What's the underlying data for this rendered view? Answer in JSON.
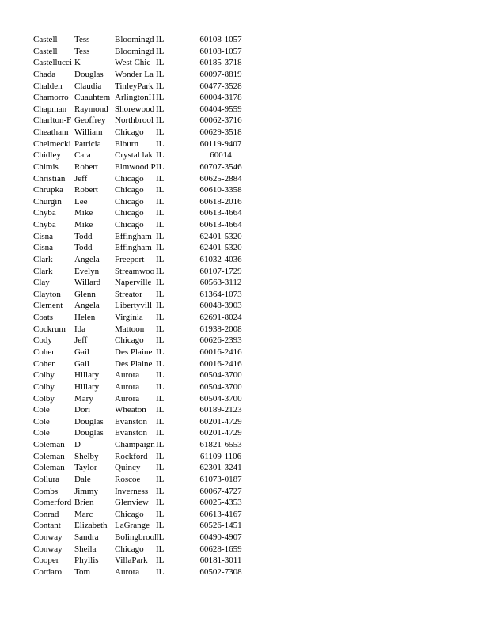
{
  "table": {
    "rows": [
      [
        "Castell",
        "Tess",
        "Bloomingd",
        "IL",
        "60108-1057"
      ],
      [
        "Castell",
        "Tess",
        "Bloomingd",
        "IL",
        "60108-1057"
      ],
      [
        "Castellucci",
        "K",
        "West Chic",
        "IL",
        "60185-3718"
      ],
      [
        "Chada",
        "Douglas",
        "Wonder La",
        "IL",
        "60097-8819"
      ],
      [
        "Chalden",
        "Claudia",
        "TinleyPark",
        "IL",
        "60477-3528"
      ],
      [
        "Chamorro",
        "Cuauhtem",
        "ArlingtonH",
        "IL",
        "60004-3178"
      ],
      [
        "Chapman",
        "Raymond",
        "Shorewood",
        "IL",
        "60404-9559"
      ],
      [
        "Charlton-F",
        "Geoffrey",
        "Northbrool",
        "IL",
        "60062-3716"
      ],
      [
        "Cheatham",
        "William",
        "Chicago",
        "IL",
        "60629-3518"
      ],
      [
        "Chelmecki",
        "Patricia",
        "Elburn",
        "IL",
        "60119-9407"
      ],
      [
        "Chidley",
        "Cara",
        "Crystal lak",
        "IL",
        "60014"
      ],
      [
        "Chimis",
        "Robert",
        "Elmwood P",
        "IL",
        "60707-3546"
      ],
      [
        "Christian",
        "Jeff",
        "Chicago",
        "IL",
        "60625-2884"
      ],
      [
        "Chrupka",
        "Robert",
        "Chicago",
        "IL",
        "60610-3358"
      ],
      [
        "Churgin",
        "Lee",
        "Chicago",
        "IL",
        "60618-2016"
      ],
      [
        "Chyba",
        "Mike",
        "Chicago",
        "IL",
        "60613-4664"
      ],
      [
        "Chyba",
        "Mike",
        "Chicago",
        "IL",
        "60613-4664"
      ],
      [
        "Cisna",
        "Todd",
        "Effingham",
        "IL",
        "62401-5320"
      ],
      [
        "Cisna",
        "Todd",
        "Effingham",
        "IL",
        "62401-5320"
      ],
      [
        "Clark",
        "Angela",
        "Freeport",
        "IL",
        "61032-4036"
      ],
      [
        "Clark",
        "Evelyn",
        "Streamwoo",
        "IL",
        "60107-1729"
      ],
      [
        "Clay",
        "Willard",
        "Naperville",
        "IL",
        "60563-3112"
      ],
      [
        "Clayton",
        "Glenn",
        "Streator",
        "IL",
        "61364-1073"
      ],
      [
        "Clement",
        "Angela",
        "Libertyvill",
        "IL",
        "60048-3903"
      ],
      [
        "Coats",
        "Helen",
        "Virginia",
        "IL",
        "62691-8024"
      ],
      [
        "Cockrum",
        "Ida",
        "Mattoon",
        "IL",
        "61938-2008"
      ],
      [
        "Cody",
        "Jeff",
        "Chicago",
        "IL",
        "60626-2393"
      ],
      [
        "Cohen",
        "Gail",
        "Des Plaine",
        "IL",
        "60016-2416"
      ],
      [
        "Cohen",
        "Gail",
        "Des Plaine",
        "IL",
        "60016-2416"
      ],
      [
        "Colby",
        "Hillary",
        "Aurora",
        "IL",
        "60504-3700"
      ],
      [
        "Colby",
        "Hillary",
        "Aurora",
        "IL",
        "60504-3700"
      ],
      [
        "Colby",
        "Mary",
        "Aurora",
        "IL",
        "60504-3700"
      ],
      [
        "Cole",
        "Dori",
        "Wheaton",
        "IL",
        "60189-2123"
      ],
      [
        "Cole",
        "Douglas",
        "Evanston",
        "IL",
        "60201-4729"
      ],
      [
        "Cole",
        "Douglas",
        "Evanston",
        "IL",
        "60201-4729"
      ],
      [
        "Coleman",
        "D",
        "Champaign",
        "IL",
        "61821-6553"
      ],
      [
        "Coleman",
        "Shelby",
        "Rockford",
        "IL",
        "61109-1106"
      ],
      [
        "Coleman",
        "Taylor",
        "Quincy",
        "IL",
        "62301-3241"
      ],
      [
        "Collura",
        "Dale",
        "Roscoe",
        "IL",
        "61073-0187"
      ],
      [
        "Combs",
        "Jimmy",
        "Inverness",
        "IL",
        "60067-4727"
      ],
      [
        "Comerford",
        "Brien",
        "Glenview",
        "IL",
        "60025-4353"
      ],
      [
        "Conrad",
        "Marc",
        "Chicago",
        "IL",
        "60613-4167"
      ],
      [
        "Contant",
        "Elizabeth",
        "LaGrange",
        "IL",
        "60526-1451"
      ],
      [
        "Conway",
        "Sandra",
        "Bolingbrool",
        "IL",
        "60490-4907"
      ],
      [
        "Conway",
        "Sheila",
        "Chicago",
        "IL",
        "60628-1659"
      ],
      [
        "Cooper",
        "Phyllis",
        "VillaPark",
        "IL",
        "60181-3011"
      ],
      [
        "Cordaro",
        "Tom",
        "Aurora",
        "IL",
        "60502-7308"
      ]
    ]
  }
}
